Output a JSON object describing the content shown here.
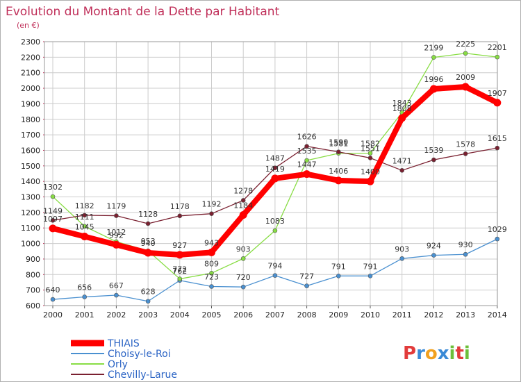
{
  "chart_data": {
    "type": "line",
    "title": "Evolution du Montant de la Dette par Habitant",
    "subtitle": "(en €)",
    "categories": [
      "2000",
      "2001",
      "2002",
      "2003",
      "2004",
      "2005",
      "2006",
      "2007",
      "2008",
      "2009",
      "2010",
      "2011",
      "2012",
      "2013",
      "2014"
    ],
    "ylim": [
      600,
      2300
    ],
    "yticks": [
      600,
      700,
      800,
      900,
      1000,
      1100,
      1200,
      1300,
      1400,
      1500,
      1600,
      1700,
      1800,
      1900,
      2000,
      2100,
      2200,
      2300
    ],
    "grid": true,
    "legend_position": "bottom-left",
    "series": [
      {
        "name": "THIAIS",
        "color": "#ff0000",
        "values": [
          1097,
          1045,
          992,
          940,
          927,
          943,
          1184,
          1419,
          1447,
          1406,
          1400,
          1808,
          1996,
          2009,
          1907
        ]
      },
      {
        "name": "Choisy-le-Roi",
        "color": "#4a90d0",
        "values": [
          640,
          656,
          667,
          628,
          762,
          723,
          720,
          794,
          727,
          791,
          791,
          903,
          924,
          930,
          1029
        ]
      },
      {
        "name": "Orly",
        "color": "#88dd44",
        "values": [
          1302,
          1111,
          1012,
          953,
          772,
          809,
          903,
          1083,
          1535,
          1581,
          1582,
          1843,
          2199,
          2225,
          2201
        ]
      },
      {
        "name": "Chevilly-Larue",
        "color": "#7a2030",
        "values": [
          1149,
          1182,
          1179,
          1128,
          1178,
          1192,
          1278,
          1487,
          1626,
          1590,
          1551,
          1471,
          1539,
          1578,
          1615
        ]
      }
    ]
  },
  "logo": {
    "letters": [
      "P",
      "r",
      "o",
      "x",
      "i",
      "t",
      "i"
    ],
    "colors": [
      "#e23b3b",
      "#3a8ad6",
      "#f2a11f",
      "#3a8ad6",
      "#6cbf3a",
      "#e23b3b",
      "#6cbf3a"
    ]
  }
}
